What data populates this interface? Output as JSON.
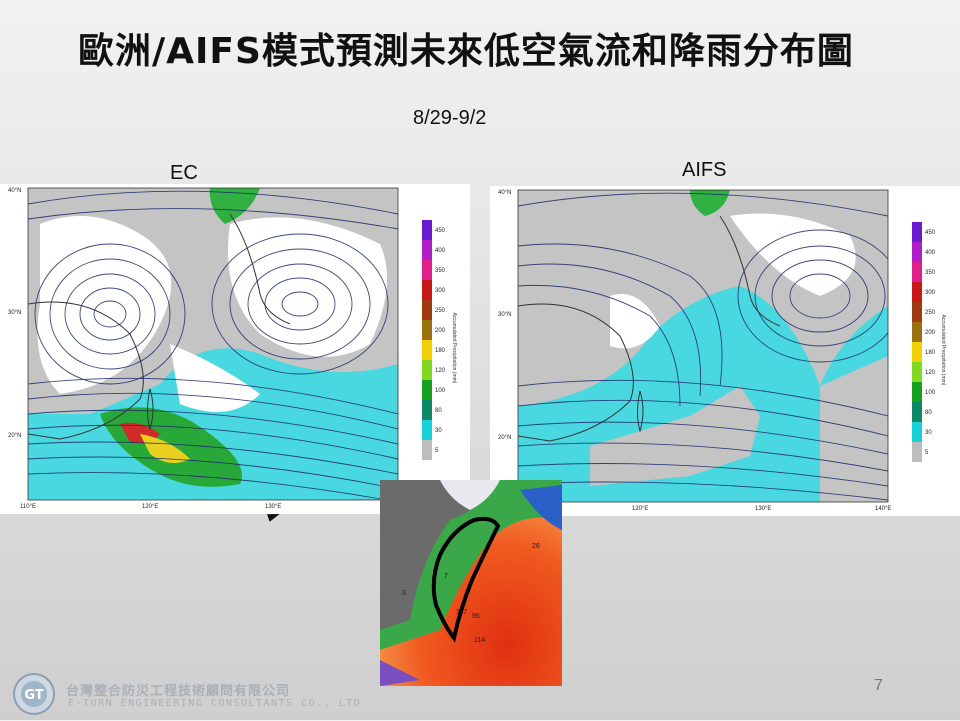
{
  "slide": {
    "title": "歐洲/AIFS模式預測未來低空氣流和降雨分布圖",
    "period": "8/29-9/2",
    "page_number": "7"
  },
  "panels": {
    "left": {
      "label": "EC"
    },
    "right": {
      "label": "AIFS"
    }
  },
  "map_axes": {
    "lat_ticks": [
      "40°N",
      "30°N",
      "20°N"
    ],
    "lon_ticks_left": [
      "110°E",
      "120°E",
      "130°E"
    ],
    "lon_ticks_right": [
      "120°E",
      "130°E",
      "140°E"
    ]
  },
  "legend": {
    "title": "Accumulated Precipitation (mm)",
    "levels": [
      "450",
      "400",
      "350",
      "300",
      "250",
      "200",
      "180",
      "120",
      "100",
      "80",
      "30",
      "5"
    ],
    "colors": [
      "#6a1bd0",
      "#b01ec8",
      "#e0208a",
      "#c81818",
      "#a03a10",
      "#9a7010",
      "#f0d000",
      "#80d820",
      "#18a020",
      "#108868",
      "#18d0d8",
      "#bdbdbd"
    ]
  },
  "inset": {
    "station_values": [
      "26",
      "96",
      "114",
      "3",
      "7",
      "117"
    ]
  },
  "footer": {
    "company_zh": "台灣整合防災工程技術顧問有限公司",
    "company_en": "E-TURN ENGINEERING CONSULTANTS CO., LTD"
  }
}
